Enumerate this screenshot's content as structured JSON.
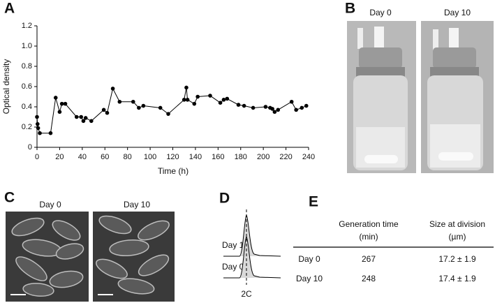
{
  "panel_labels": [
    "A",
    "B",
    "C",
    "D",
    "E"
  ],
  "chart_data": {
    "type": "line",
    "xlabel": "Time (h)",
    "ylabel": "Optical density",
    "x": [
      0,
      0.5,
      1,
      2.5,
      12,
      16.5,
      20,
      22,
      25,
      35,
      39,
      41,
      43,
      48,
      59,
      62,
      67,
      73,
      85,
      90,
      94,
      109,
      116,
      130,
      132,
      133,
      139,
      142,
      153,
      162,
      165,
      168,
      178,
      183,
      191,
      202,
      206,
      208,
      210,
      213,
      225,
      229,
      234,
      238
    ],
    "values": [
      0.3,
      0.23,
      0.19,
      0.14,
      0.14,
      0.49,
      0.35,
      0.43,
      0.43,
      0.3,
      0.3,
      0.26,
      0.29,
      0.26,
      0.37,
      0.34,
      0.58,
      0.45,
      0.45,
      0.39,
      0.41,
      0.39,
      0.33,
      0.47,
      0.59,
      0.47,
      0.43,
      0.5,
      0.51,
      0.44,
      0.47,
      0.48,
      0.42,
      0.41,
      0.39,
      0.4,
      0.39,
      0.38,
      0.35,
      0.37,
      0.45,
      0.37,
      0.39,
      0.41
    ],
    "color": "#000000",
    "xlim": [
      0,
      240
    ],
    "xticks": [
      0,
      20,
      40,
      60,
      80,
      100,
      120,
      140,
      160,
      180,
      200,
      220,
      240
    ],
    "ylim": [
      0,
      1.2
    ],
    "yticks": [
      0,
      0.2,
      0.4,
      0.6,
      0.8,
      {
        "value": 1,
        "label": "1.0"
      },
      1.2
    ]
  },
  "photos": {
    "labels": [
      "Day 0",
      "Day 10"
    ]
  },
  "micrographs": {
    "labels": [
      "Day 0",
      "Day 10"
    ]
  },
  "histograms": {
    "labels": [
      "Day 10",
      "Day 0"
    ],
    "x_label": "2C"
  },
  "table": {
    "columns": [
      [
        "Generation time",
        "(min)"
      ],
      [
        "Size at division",
        "(µm)"
      ]
    ],
    "rows": [
      [
        "Day 0",
        "267",
        "17.2 ± 1.9"
      ],
      [
        "Day 10",
        "248",
        "17.4 ± 1.9"
      ]
    ]
  }
}
